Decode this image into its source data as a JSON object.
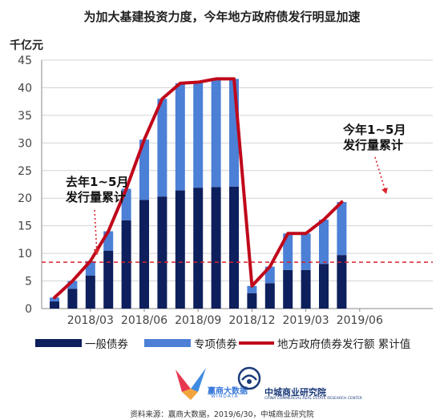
{
  "title": "为加大基建投资力度，今年地方政府债发行明显加速",
  "colors": {
    "general": "#0d1f5c",
    "special": "#4c80d6",
    "cumulative": "#c0081b",
    "threshold": "#d9232e"
  },
  "annotations": {
    "left_line1": "去年1~5月",
    "left_line2": "发行量累计",
    "right_line1": "今年1~5月",
    "right_line2": "发行量累计"
  },
  "chart_data": {
    "type": "bar",
    "y_unit": "千亿元",
    "ylim": [
      0,
      45
    ],
    "yticks": [
      0,
      5,
      10,
      15,
      20,
      25,
      30,
      35,
      40,
      45
    ],
    "x_tick_labels": [
      "2018/03",
      "2018/06",
      "2018/09",
      "2018/12",
      "2019/03",
      "2019/06"
    ],
    "categories": [
      "2018/01",
      "2018/02",
      "2018/03",
      "2018/04",
      "2018/05",
      "2018/06",
      "2018/07",
      "2018/08",
      "2018/09",
      "2018/10",
      "2018/11",
      "2018/12",
      "2019/01",
      "2019/02",
      "2019/03",
      "2019/04",
      "2019/05"
    ],
    "series": [
      {
        "name": "一般债券",
        "values": [
          1.3,
          3.6,
          6.0,
          10.5,
          16.0,
          19.7,
          20.3,
          21.4,
          21.9,
          22.0,
          22.1,
          2.8,
          4.6,
          7.0,
          7.0,
          8.1,
          9.7
        ]
      },
      {
        "name": "专项债券",
        "values": [
          0.7,
          1.4,
          2.6,
          3.5,
          5.7,
          10.9,
          17.7,
          19.4,
          19.1,
          19.6,
          19.5,
          1.3,
          3.0,
          6.6,
          6.6,
          8.0,
          9.6
        ]
      },
      {
        "name": "地方政府债券发行额 累计值",
        "values": [
          2.0,
          5.0,
          8.6,
          14.0,
          21.7,
          30.6,
          38.0,
          40.8,
          41.0,
          41.6,
          41.6,
          4.1,
          7.6,
          13.6,
          13.6,
          16.1,
          19.3
        ]
      }
    ],
    "reference_line": 8.4,
    "grid": true
  },
  "source_text": "资料来源：赢商大数据，2019/6/30，中城商业研究院",
  "logo_win_text": "赢商大数据",
  "logo_win_sub": "WINDATA",
  "logo_zc_text": "中城商业研究院",
  "logo_zc_sub": "CHINA COMMERCIAL REAL ESTATE RESEARCH CENTER"
}
